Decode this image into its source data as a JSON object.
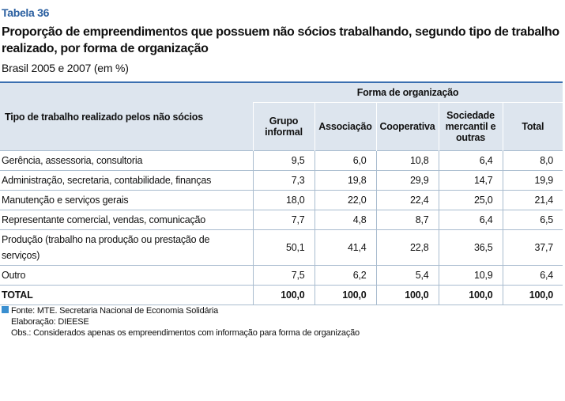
{
  "label": "Tabela 36",
  "title": "Proporção de empreendimentos que possuem não sócios trabalhando, segundo tipo de trabalho realizado, por forma de organização",
  "subtitle": "Brasil 2005 e 2007 (em %)",
  "table": {
    "group_header": "Forma de organização",
    "row_header": "Tipo de trabalho realizado pelos não sócios",
    "columns": [
      "Grupo informal",
      "Associação",
      "Cooperativa",
      "Sociedade mercantil e outras",
      "Total"
    ],
    "rows": [
      {
        "label": "Gerência, assessoria, consultoria",
        "values": [
          "9,5",
          "6,0",
          "10,8",
          "6,4",
          "8,0"
        ]
      },
      {
        "label": "Administração, secretaria, contabilidade, finanças",
        "values": [
          "7,3",
          "19,8",
          "29,9",
          "14,7",
          "19,9"
        ]
      },
      {
        "label": "Manutenção e serviços gerais",
        "values": [
          "18,0",
          "22,0",
          "22,4",
          "25,0",
          "21,4"
        ]
      },
      {
        "label": "Representante comercial, vendas, comunicação",
        "values": [
          "7,7",
          "4,8",
          "8,7",
          "6,4",
          "6,5"
        ]
      },
      {
        "label": "Produção (trabalho na produção ou prestação de serviços)",
        "values": [
          "50,1",
          "41,4",
          "22,8",
          "36,5",
          "37,7"
        ]
      },
      {
        "label": "Outro",
        "values": [
          "7,5",
          "6,2",
          "5,4",
          "10,9",
          "6,4"
        ]
      }
    ],
    "total": {
      "label": "TOTAL",
      "values": [
        "100,0",
        "100,0",
        "100,0",
        "100,0",
        "100,0"
      ]
    }
  },
  "footer": {
    "source": "Fonte: MTE. Secretaria Nacional de Economia Solidária",
    "elaboration": "Elaboração: DIEESE",
    "note": "Obs.: Considerados apenas os empreendimentos com informação para forma de organização"
  }
}
